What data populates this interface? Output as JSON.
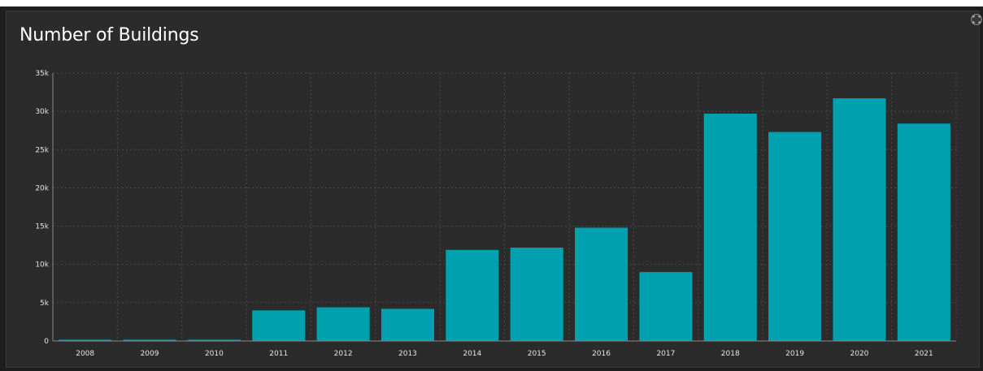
{
  "panel": {
    "title": "Number of Buildings"
  },
  "corner_button": {
    "icon": "expand-icon"
  },
  "colors": {
    "bar": "#00a0ae",
    "background": "#2b2b2b",
    "grid": "#4a4a4a"
  },
  "chart_data": {
    "type": "bar",
    "title": "Number of Buildings",
    "xlabel": "",
    "ylabel": "",
    "categories": [
      "2008",
      "2009",
      "2010",
      "2011",
      "2012",
      "2013",
      "2014",
      "2015",
      "2016",
      "2017",
      "2018",
      "2019",
      "2020",
      "2021"
    ],
    "values": [
      150,
      150,
      150,
      4000,
      4400,
      4200,
      11900,
      12200,
      14800,
      9000,
      29700,
      27300,
      31700,
      28400
    ],
    "ylim": [
      0,
      35000
    ],
    "y_ticks": [
      0,
      5000,
      10000,
      15000,
      20000,
      25000,
      30000,
      35000
    ],
    "y_tick_labels": [
      "0",
      "5k",
      "10k",
      "15k",
      "20k",
      "25k",
      "30k",
      "35k"
    ],
    "grid": true
  }
}
